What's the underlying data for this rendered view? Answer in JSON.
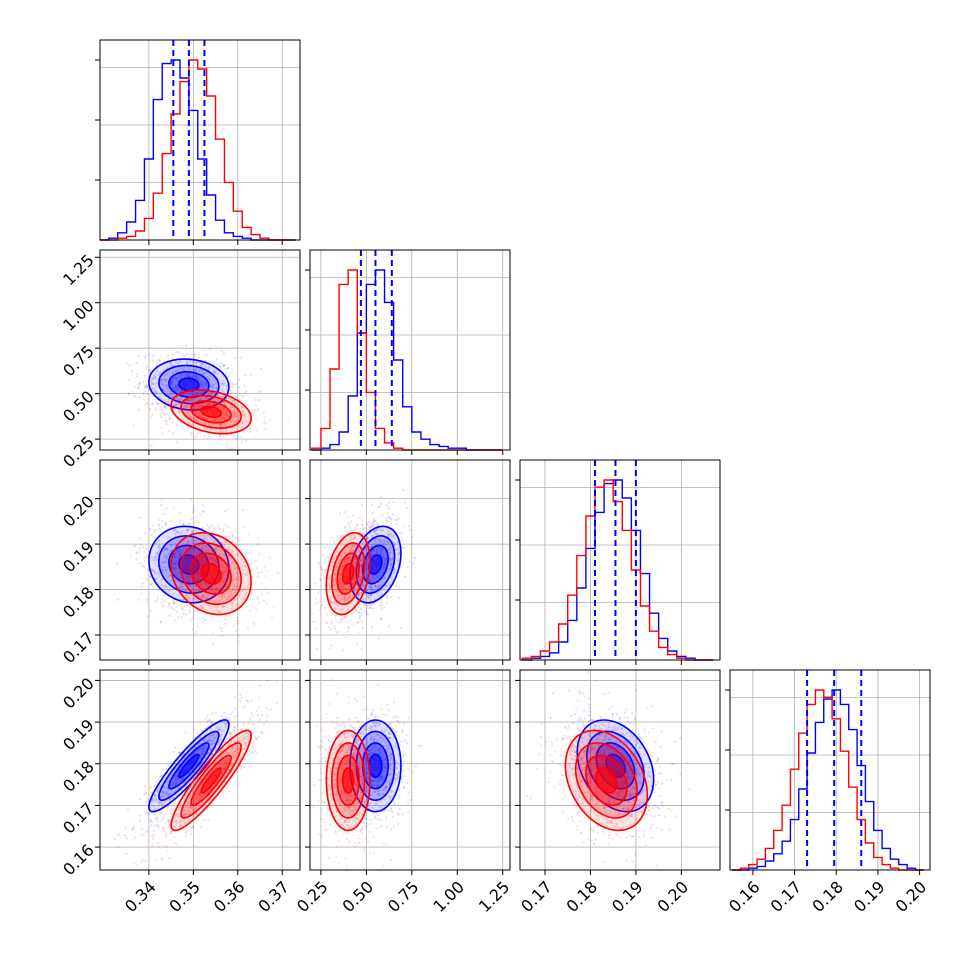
{
  "chart_data": {
    "type": "corner",
    "series_colors": [
      "#0000ff",
      "#ff0000"
    ],
    "quantile_line_color": "#0000ff",
    "grid": true,
    "variables": [
      {
        "xlim": [
          0.329,
          0.374
        ],
        "ticks": [
          0.34,
          0.35,
          0.36,
          0.37
        ],
        "tick_labels": [
          "0.34",
          "0.35",
          "0.36",
          "0.37"
        ]
      },
      {
        "xlim": [
          0.19,
          1.29
        ],
        "ticks": [
          0.25,
          0.5,
          0.75,
          1.0,
          1.25
        ],
        "tick_labels": [
          "0.25",
          "0.50",
          "0.75",
          "1.00",
          "1.25"
        ]
      },
      {
        "xlim": [
          0.1645,
          0.2085
        ],
        "ticks": [
          0.17,
          0.18,
          0.19,
          0.2
        ],
        "tick_labels": [
          "0.17",
          "0.18",
          "0.19",
          "0.20"
        ]
      },
      {
        "xlim": [
          0.1545,
          0.2025
        ],
        "ticks": [
          0.16,
          0.17,
          0.18,
          0.19,
          0.2
        ],
        "tick_labels": [
          "0.16",
          "0.17",
          "0.18",
          "0.19",
          "0.20"
        ]
      }
    ],
    "y_tick_labels": {
      "1": {
        "ylim": [
          0.19,
          1.29
        ],
        "ticks": [
          0.25,
          0.5,
          0.75,
          1.0,
          1.25
        ],
        "labels": [
          "0.25",
          "0.50",
          "0.75",
          "1.00",
          "1.25"
        ]
      },
      "2": {
        "ylim": [
          0.1645,
          0.2085
        ],
        "ticks": [
          0.17,
          0.18,
          0.19,
          0.2
        ],
        "labels": [
          "0.17",
          "0.18",
          "0.19",
          "0.20"
        ]
      },
      "3": {
        "ylim": [
          0.1545,
          0.2025
        ],
        "ticks": [
          0.16,
          0.17,
          0.18,
          0.19,
          0.2
        ],
        "labels": [
          "0.16",
          "0.17",
          "0.18",
          "0.19",
          "0.20"
        ]
      }
    },
    "series": [
      {
        "color": "#0000ff",
        "means": [
          0.349,
          0.55,
          0.1855,
          0.1795
        ],
        "sigmas": [
          0.0045,
          0.07,
          0.0042,
          0.0055
        ],
        "correlations": {
          "1-0": -0.1,
          "2-0": -0.1,
          "2-1": 0.3,
          "3-0": 0.9,
          "3-1": 0.0,
          "3-2": -0.3
        },
        "quantiles": [
          [
            0.3455,
            0.349,
            0.3525
          ],
          [
            0.47,
            0.55,
            0.64
          ],
          [
            0.181,
            0.1855,
            0.19
          ],
          [
            0.173,
            0.1795,
            0.186
          ]
        ]
      },
      {
        "color": "#ff0000",
        "means": [
          0.354,
          0.4,
          0.1835,
          0.176
        ],
        "sigmas": [
          0.0045,
          0.06,
          0.0045,
          0.006
        ],
        "correlations": {
          "1-0": -0.3,
          "2-0": -0.2,
          "2-1": 0.3,
          "3-0": 0.9,
          "3-1": 0.0,
          "3-2": -0.3
        }
      }
    ],
    "diagonal_histograms": [
      {
        "bins": [
          0.329,
          0.331,
          0.333,
          0.335,
          0.337,
          0.339,
          0.341,
          0.343,
          0.345,
          0.347,
          0.349,
          0.351,
          0.353,
          0.355,
          0.357,
          0.359,
          0.361,
          0.363,
          0.365,
          0.367,
          0.369,
          0.371,
          0.373
        ],
        "counts": [
          [
            0,
            1,
            4,
            10,
            22,
            45,
            78,
            98,
            100,
            90,
            72,
            45,
            25,
            11,
            4,
            2,
            1,
            0,
            0,
            0,
            0,
            0
          ],
          [
            0,
            0,
            1,
            2,
            5,
            12,
            26,
            48,
            70,
            88,
            100,
            95,
            80,
            56,
            32,
            16,
            7,
            3,
            1,
            0,
            0,
            0
          ]
        ]
      },
      {
        "bins": [
          0.2,
          0.25,
          0.3,
          0.35,
          0.4,
          0.45,
          0.5,
          0.55,
          0.6,
          0.65,
          0.7,
          0.75,
          0.8,
          0.85,
          0.9,
          0.95,
          1.0,
          1.05,
          1.1,
          1.15,
          1.2,
          1.25
        ],
        "counts": [
          [
            0,
            1,
            3,
            10,
            30,
            65,
            92,
            100,
            82,
            50,
            24,
            10,
            6,
            3,
            2,
            1,
            1,
            0,
            0,
            0,
            0
          ],
          [
            1,
            12,
            45,
            92,
            100,
            65,
            32,
            12,
            4,
            1,
            0,
            0,
            0,
            0,
            0,
            0,
            0,
            0,
            0,
            0,
            0
          ]
        ]
      },
      {
        "bins": [
          0.165,
          0.167,
          0.169,
          0.171,
          0.173,
          0.175,
          0.177,
          0.179,
          0.181,
          0.183,
          0.185,
          0.187,
          0.189,
          0.191,
          0.193,
          0.195,
          0.197,
          0.199,
          0.201,
          0.203,
          0.205,
          0.207
        ],
        "counts": [
          [
            0,
            1,
            2,
            4,
            10,
            22,
            40,
            62,
            82,
            98,
            100,
            90,
            72,
            48,
            26,
            12,
            5,
            2,
            1,
            0,
            0
          ],
          [
            1,
            2,
            5,
            10,
            20,
            36,
            58,
            80,
            96,
            100,
            88,
            72,
            50,
            30,
            16,
            7,
            3,
            1,
            0,
            0,
            0
          ]
        ]
      },
      {
        "bins": [
          0.155,
          0.157,
          0.159,
          0.161,
          0.163,
          0.165,
          0.167,
          0.169,
          0.171,
          0.173,
          0.175,
          0.177,
          0.179,
          0.181,
          0.183,
          0.185,
          0.187,
          0.189,
          0.191,
          0.193,
          0.195,
          0.197,
          0.199,
          0.201
        ],
        "counts": [
          [
            0,
            0,
            1,
            2,
            5,
            9,
            16,
            28,
            45,
            65,
            82,
            95,
            100,
            92,
            78,
            58,
            38,
            22,
            12,
            6,
            3,
            1,
            0
          ],
          [
            0,
            1,
            3,
            6,
            12,
            22,
            36,
            56,
            76,
            92,
            100,
            96,
            84,
            66,
            46,
            28,
            15,
            7,
            3,
            1,
            0,
            0,
            0
          ]
        ]
      }
    ]
  }
}
